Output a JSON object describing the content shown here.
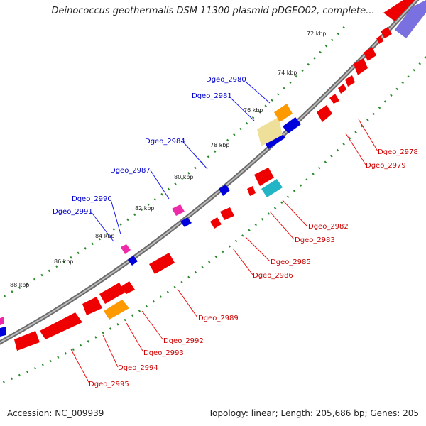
{
  "title": "Deinococcus geothermalis DSM 11300 plasmid pDGEO02, complete...",
  "accession": "Accession: NC_009939",
  "summary": "Topology: linear; Length: 205,686 bp; Genes: 205",
  "colors": {
    "forward": "#ee0000",
    "reverse": "#0000dd",
    "backbone": "#999999",
    "tick": "#2a8a2a",
    "label_forward": "#cc0000",
    "label_reverse": "#0000cc",
    "orange": "#ff9900",
    "pink": "#ee2aa8",
    "teal": "#22b5c5",
    "pale": "#eee09a",
    "violet": "#7a70e0"
  },
  "ticks": [
    "72 kbp",
    "74 kbp",
    "76 kbp",
    "78 kbp",
    "80 kbp",
    "82 kbp",
    "84 kbp",
    "86 kbp",
    "88 kbp"
  ],
  "labels_reverse": [
    "Dgeo_2980",
    "Dgeo_2981",
    "Dgeo_2984",
    "Dgeo_2987",
    "Dgeo_2990",
    "Dgeo_2991"
  ],
  "labels_forward": [
    "Dgeo_2978",
    "Dgeo_2979",
    "Dgeo_2982",
    "Dgeo_2983",
    "Dgeo_2985",
    "Dgeo_2986",
    "Dgeo_2989",
    "Dgeo_2992",
    "Dgeo_2993",
    "Dgeo_2994",
    "Dgeo_2995"
  ]
}
